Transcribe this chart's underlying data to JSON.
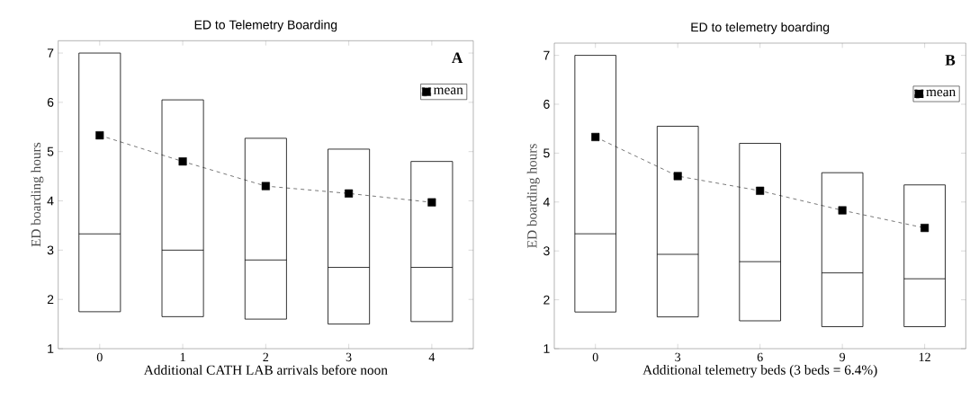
{
  "chart_data": [
    {
      "type": "box",
      "title": "ED to Telemetry Boarding",
      "xlabel": "Additional CATH LAB arrivals before noon",
      "ylabel": "ED boarding hours",
      "categories": [
        "0",
        "1",
        "2",
        "3",
        "4"
      ],
      "boxes": [
        {
          "low": 1.75,
          "q1": 1.75,
          "median": 3.33,
          "q3": 7.0,
          "high": 7.0
        },
        {
          "low": 1.65,
          "q1": 1.65,
          "median": 3.0,
          "q3": 6.05,
          "high": 6.05
        },
        {
          "low": 1.6,
          "q1": 1.6,
          "median": 2.8,
          "q3": 5.27,
          "high": 5.27
        },
        {
          "low": 1.5,
          "q1": 1.5,
          "median": 2.65,
          "q3": 5.05,
          "high": 5.05
        },
        {
          "low": 1.55,
          "q1": 1.55,
          "median": 2.65,
          "q3": 4.8,
          "high": 4.8
        }
      ],
      "series": [
        {
          "type": "line",
          "name": "mean",
          "color": "#000000",
          "x": [
            "0",
            "1",
            "2",
            "3",
            "4"
          ],
          "values": [
            5.33,
            4.8,
            4.3,
            4.15,
            3.97
          ],
          "marker": "square",
          "line_style": "dashed"
        }
      ],
      "ylim": [
        1,
        7.25
      ],
      "yticks": [
        1,
        2,
        3,
        4,
        5,
        6,
        7
      ],
      "legend": "top right",
      "annotations": [
        "A"
      ]
    },
    {
      "type": "box",
      "title": "ED to telemetry boarding",
      "xlabel": "Additional telemetry beds (3 beds = 6.4%)",
      "ylabel": "ED boarding hours",
      "categories": [
        "0",
        "3",
        "6",
        "9",
        "12"
      ],
      "boxes": [
        {
          "low": 1.75,
          "q1": 1.75,
          "median": 3.35,
          "q3": 7.0,
          "high": 7.0
        },
        {
          "low": 1.65,
          "q1": 1.65,
          "median": 2.93,
          "q3": 5.55,
          "high": 5.55
        },
        {
          "low": 1.57,
          "q1": 1.57,
          "median": 2.78,
          "q3": 5.2,
          "high": 5.2
        },
        {
          "low": 1.45,
          "q1": 1.45,
          "median": 2.55,
          "q3": 4.6,
          "high": 4.6
        },
        {
          "low": 1.45,
          "q1": 1.45,
          "median": 2.43,
          "q3": 4.35,
          "high": 4.35
        }
      ],
      "series": [
        {
          "type": "line",
          "name": "mean",
          "color": "#000000",
          "x": [
            "0",
            "3",
            "6",
            "9",
            "12"
          ],
          "values": [
            5.33,
            4.53,
            4.23,
            3.83,
            3.47
          ],
          "marker": "square",
          "line_style": "dashed"
        }
      ],
      "ylim": [
        1,
        7.25
      ],
      "yticks": [
        1,
        2,
        3,
        4,
        5,
        6,
        7
      ],
      "legend": "top right",
      "annotations": [
        "B"
      ]
    }
  ]
}
